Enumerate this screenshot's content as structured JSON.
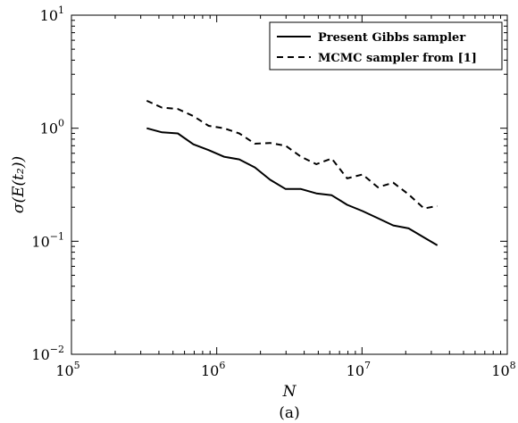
{
  "chart_data": {
    "type": "line",
    "xscale": "log",
    "yscale": "log",
    "xlim": [
      100000,
      100000000
    ],
    "ylim": [
      0.01,
      10
    ],
    "xlabel": "N",
    "ylabel": "σ(E(t₂))",
    "caption": "(a)",
    "legend_position": "top-right",
    "x_ticks": [
      {
        "base": "10",
        "exp": "5",
        "value": 100000
      },
      {
        "base": "10",
        "exp": "6",
        "value": 1000000
      },
      {
        "base": "10",
        "exp": "7",
        "value": 10000000
      },
      {
        "base": "10",
        "exp": "8",
        "value": 100000000
      }
    ],
    "y_ticks": [
      {
        "base": "10",
        "exp": "−2",
        "value": 0.01
      },
      {
        "base": "10",
        "exp": "−1",
        "value": 0.1
      },
      {
        "base": "10",
        "exp": "0",
        "value": 1
      },
      {
        "base": "10",
        "exp": "1",
        "value": 10
      }
    ],
    "series": [
      {
        "name": "Present Gibbs sampler",
        "style": "solid",
        "color": "#000000",
        "x": [
          330000,
          420000,
          540000,
          690000,
          880000,
          1120000,
          1430000,
          1830000,
          2330000,
          2980000,
          3800000,
          4850000,
          6190000,
          7900000,
          10080000,
          12860000,
          16410000,
          20940000,
          26720000,
          33000000
        ],
        "y": [
          1.0,
          0.92,
          0.9,
          0.72,
          0.64,
          0.56,
          0.53,
          0.45,
          0.35,
          0.29,
          0.29,
          0.265,
          0.255,
          0.21,
          0.185,
          0.16,
          0.138,
          0.13,
          0.108,
          0.092
        ]
      },
      {
        "name": "MCMC sampler from [1]",
        "style": "dashed",
        "color": "#000000",
        "x": [
          330000,
          420000,
          540000,
          690000,
          880000,
          1120000,
          1430000,
          1830000,
          2330000,
          2980000,
          3800000,
          4850000,
          6190000,
          7900000,
          10080000,
          12860000,
          16410000,
          20940000,
          26720000,
          33000000
        ],
        "y": [
          1.75,
          1.52,
          1.48,
          1.28,
          1.05,
          1.0,
          0.9,
          0.73,
          0.74,
          0.7,
          0.56,
          0.48,
          0.54,
          0.36,
          0.39,
          0.3,
          0.33,
          0.26,
          0.195,
          0.205
        ]
      }
    ]
  }
}
